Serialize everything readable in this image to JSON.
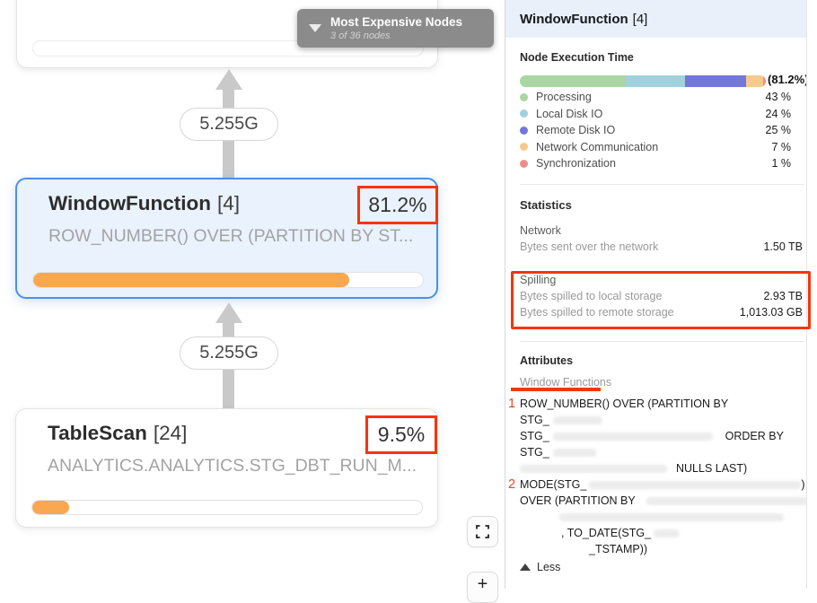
{
  "canvas": {
    "overlay": {
      "title": "Most Expensive Nodes",
      "subtitle": "3 of 36 nodes"
    },
    "edge_labels": [
      "5.255G",
      "5.255G"
    ],
    "window_function_node": {
      "title": "WindowFunction",
      "index": "[4]",
      "percent": "81.2%",
      "subtitle": "ROW_NUMBER() OVER (PARTITION BY ST...",
      "progress_pct": 81.2
    },
    "table_scan_node": {
      "title": "TableScan",
      "index": "[24]",
      "percent": "9.5%",
      "subtitle": "ANALYTICS.ANALYTICS.STG_DBT_RUN_M...",
      "progress_pct": 9.5
    },
    "zoom_in_label": "+"
  },
  "panel": {
    "header": {
      "title": "WindowFunction",
      "index": "[4]"
    },
    "execution_time": {
      "heading": "Node Execution Time",
      "total": "(81.2%)",
      "segments": [
        {
          "label": "Processing",
          "value": "43 %",
          "pct": 43,
          "color": "#a9d6a2"
        },
        {
          "label": "Local Disk IO",
          "value": "24 %",
          "pct": 24,
          "color": "#a0d1dd"
        },
        {
          "label": "Remote Disk IO",
          "value": "25 %",
          "pct": 25,
          "color": "#7377d9"
        },
        {
          "label": "Network Communication",
          "value": "7 %",
          "pct": 7,
          "color": "#f6c98d"
        },
        {
          "label": "Synchronization",
          "value": "1 %",
          "pct": 1,
          "color": "#ee8e8c"
        }
      ]
    },
    "statistics": {
      "heading": "Statistics",
      "network_group": {
        "name": "Network",
        "rows": [
          {
            "label": "Bytes sent over the network",
            "value": "1.50 TB"
          }
        ]
      },
      "spilling_group": {
        "name": "Spilling",
        "rows": [
          {
            "label": "Bytes spilled to local storage",
            "value": "2.93 TB"
          },
          {
            "label": "Bytes spilled to remote storage",
            "value": "1,013.03 GB"
          }
        ]
      }
    },
    "attributes": {
      "heading": "Attributes",
      "subheading": "Window Functions",
      "marker1": "1",
      "marker2": "2",
      "line1": "ROW_NUMBER() OVER (PARTITION BY",
      "line2_prefix": "STG_",
      "line3_prefix": "STG_",
      "line3_suffix": "ORDER BY",
      "line4_prefix": "STG_",
      "line5_suffix": "NULLS LAST)",
      "line6_prefix": "MODE(STG_",
      "line6_suffix": ")",
      "line7_prefix": "OVER (PARTITION BY",
      "line9_text": ", TO_DATE(STG_",
      "line10_text": "_TSTAMP))",
      "less_label": "Less"
    }
  },
  "colors": {
    "accent_blue": "#4b90e2",
    "progress_orange": "#f9a850",
    "annotation_red": "#f5350c",
    "arrow_gray": "#c9c9c9"
  }
}
